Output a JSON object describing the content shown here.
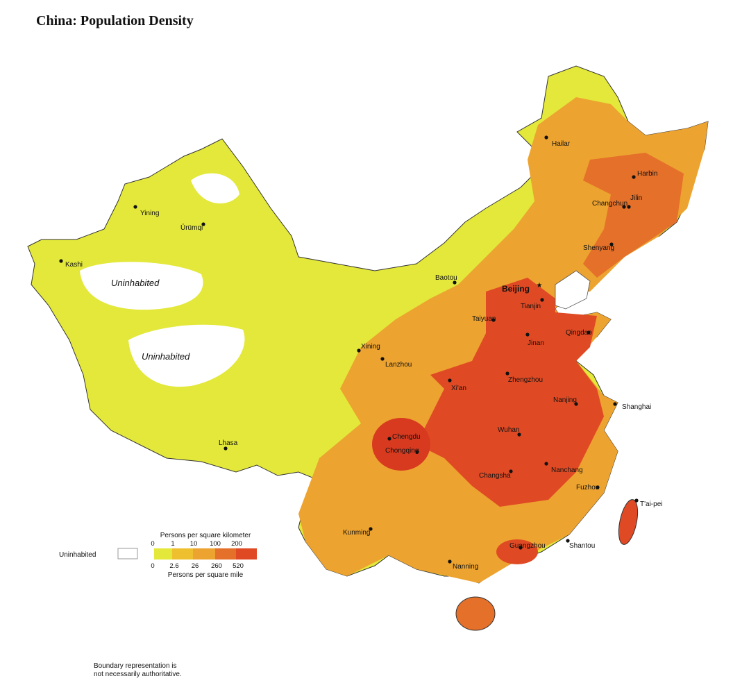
{
  "title": "China: Population Density",
  "map": {
    "capital": "Beijing",
    "cities": [
      "Hailar",
      "Harbin",
      "Jilin",
      "Changchun",
      "Shenyang",
      "Tianjin",
      "Baotou",
      "Taiyuan",
      "Qingdao",
      "Jinan",
      "Yining",
      "Ürümqi",
      "Kashi",
      "Xining",
      "Lanzhou",
      "Xi'an",
      "Zhengzhou",
      "Nanjing",
      "Shanghai",
      "Wuhan",
      "Chengdu",
      "Chongqing",
      "Changsha",
      "Nanchang",
      "Fuzhou",
      "T'ai-pei",
      "Lhasa",
      "Kunming",
      "Guangzhou",
      "Shantou",
      "Nanning"
    ],
    "regions": [
      "Uninhabited",
      "Uninhabited"
    ]
  },
  "legend": {
    "uninhabited": "Uninhabited",
    "km_title": "Persons per square kilometer",
    "km_ticks": [
      0,
      1,
      10,
      100,
      200
    ],
    "mile_title": "Persons per square mile",
    "mile_ticks": [
      0,
      2.6,
      26,
      260,
      520
    ]
  },
  "note": [
    "Boundary representation is",
    "not necessarily authoritative."
  ]
}
